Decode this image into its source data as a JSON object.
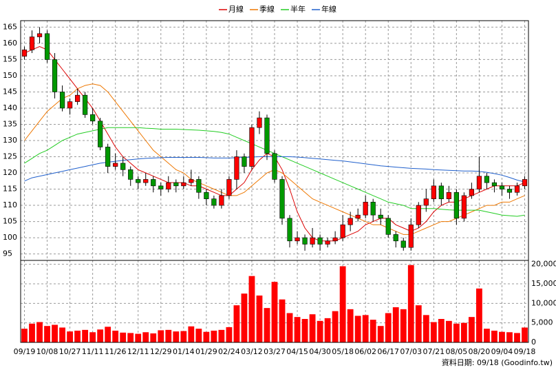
{
  "chart_data": {
    "type": "candlestick",
    "categories": [
      "09/19",
      null,
      null,
      "10/08",
      null,
      null,
      "10/27",
      null,
      null,
      "11/11",
      null,
      null,
      "11/26",
      null,
      null,
      "12/11",
      null,
      null,
      "12/29",
      null,
      null,
      "01/14",
      null,
      null,
      "01/29",
      null,
      null,
      "02/24",
      null,
      null,
      "03/12",
      null,
      null,
      "03/27",
      null,
      null,
      "04/15",
      null,
      null,
      "04/30",
      null,
      null,
      "05/18",
      null,
      null,
      "06/02",
      null,
      null,
      "06/17",
      null,
      null,
      "07/03",
      null,
      null,
      "07/21",
      null,
      null,
      "08/05",
      null,
      null,
      "08/20",
      null,
      null,
      "09/04",
      null,
      null,
      "09/18"
    ],
    "open": [
      156,
      158,
      162,
      163,
      155,
      145,
      140,
      142,
      144,
      138,
      136,
      128,
      122,
      123,
      121,
      118,
      117,
      118,
      116,
      115,
      117,
      116,
      117,
      118,
      114,
      112,
      110,
      113,
      118,
      125,
      122,
      134,
      137,
      126,
      118,
      106,
      99,
      100,
      98,
      100,
      98,
      99,
      100,
      104,
      106,
      107,
      111,
      107,
      106,
      101,
      99,
      97,
      104,
      110,
      112,
      116,
      112,
      114,
      106,
      113,
      115,
      119,
      117,
      116,
      115,
      114,
      116
    ],
    "high": [
      159,
      164,
      165,
      164,
      157,
      147,
      143,
      146,
      145,
      140,
      137,
      129,
      126,
      125,
      122,
      119,
      120,
      119,
      117,
      119,
      118,
      119,
      121,
      119,
      115,
      113,
      115,
      119,
      127,
      126,
      135,
      139,
      138,
      127,
      119,
      107,
      102,
      101,
      103,
      101,
      100,
      102,
      107,
      108,
      109,
      113,
      112,
      109,
      107,
      102,
      100,
      106,
      111,
      115,
      118,
      117,
      116,
      115,
      114,
      117,
      125,
      120,
      118,
      117,
      116,
      117,
      119
    ],
    "low": [
      155,
      157,
      160,
      154,
      143,
      139,
      138,
      141,
      137,
      135,
      127,
      120,
      121,
      119,
      116,
      115,
      116,
      114,
      113,
      114,
      114,
      115,
      116,
      112,
      110,
      109,
      109,
      112,
      115,
      120,
      121,
      132,
      124,
      117,
      104,
      97,
      98,
      96,
      97,
      96,
      97,
      98,
      99,
      102,
      105,
      106,
      105,
      104,
      100,
      97,
      96,
      96,
      103,
      108,
      111,
      110,
      111,
      104,
      105,
      112,
      114,
      115,
      114,
      113,
      112,
      113,
      115
    ],
    "close": [
      158,
      162,
      163,
      155,
      145,
      140,
      142,
      144,
      138,
      136,
      128,
      122,
      123,
      121,
      118,
      117,
      118,
      116,
      115,
      117,
      116,
      117,
      118,
      114,
      112,
      110,
      113,
      118,
      125,
      122,
      134,
      137,
      126,
      118,
      106,
      99,
      100,
      98,
      100,
      98,
      99,
      100,
      104,
      106,
      107,
      111,
      107,
      106,
      101,
      99,
      97,
      104,
      110,
      112,
      116,
      112,
      114,
      106,
      113,
      115,
      119,
      117,
      116,
      115,
      114,
      116,
      118
    ],
    "volume": [
      3500,
      4800,
      5200,
      4200,
      4500,
      3800,
      2800,
      3000,
      3200,
      2600,
      3300,
      4000,
      3000,
      2500,
      2400,
      2200,
      2600,
      2300,
      3100,
      3200,
      2800,
      2900,
      4100,
      3500,
      2700,
      3000,
      3200,
      3900,
      9500,
      12500,
      17000,
      12000,
      8800,
      15500,
      11000,
      7500,
      6500,
      6000,
      7200,
      5500,
      6200,
      8000,
      19500,
      8500,
      6800,
      7000,
      5800,
      4200,
      7500,
      9000,
      8500,
      19800,
      9500,
      7000,
      5200,
      6000,
      5500,
      4800,
      5000,
      6500,
      13800,
      3500,
      3000,
      2700,
      2600,
      2400,
      3800
    ],
    "up_color": "#ff0000",
    "down_color": "#009900",
    "volume_color": "#ff0000",
    "series": [
      {
        "name": "月線",
        "color": "#dd0000",
        "values": [
          157,
          158,
          159,
          158,
          155,
          152,
          149,
          146,
          143,
          140,
          136,
          132,
          128,
          125,
          123,
          121,
          120,
          119,
          118,
          117,
          117,
          117,
          116,
          116,
          115,
          114,
          113,
          113,
          115,
          117,
          121,
          124,
          126,
          125,
          121,
          115,
          108,
          103,
          100,
          99,
          99,
          99,
          100,
          101,
          102,
          104,
          105,
          106,
          106,
          104,
          103,
          102,
          103,
          105,
          108,
          110,
          111,
          111,
          112,
          113,
          114,
          115,
          116,
          116,
          116,
          116,
          117
        ]
      },
      {
        "name": "季線",
        "color": "#ee7700",
        "values": [
          130,
          133,
          136,
          139,
          141,
          143,
          144,
          146,
          147,
          147.5,
          147,
          145,
          142,
          139,
          136,
          133,
          130,
          127,
          125,
          123,
          121,
          120,
          118,
          117,
          116,
          115,
          114,
          113,
          113,
          114,
          116,
          118,
          120,
          121,
          120,
          118,
          116,
          114,
          112,
          111,
          110,
          109,
          108,
          107,
          106,
          105,
          104,
          104,
          103,
          102,
          101,
          101,
          102,
          103,
          104,
          105,
          105,
          106,
          107,
          108,
          109,
          110,
          110,
          111,
          111,
          112,
          113
        ]
      },
      {
        "name": "半年",
        "color": "#22cc22",
        "values": [
          123,
          124.5,
          126,
          127,
          128.5,
          130,
          131,
          132,
          132.5,
          133,
          133.5,
          134,
          134,
          134,
          134,
          134,
          133.8,
          133.7,
          133.5,
          133.5,
          133.5,
          133.4,
          133.3,
          133.2,
          133,
          132.8,
          132.5,
          132,
          131,
          130,
          129,
          128,
          127,
          126,
          125,
          124,
          123,
          122,
          121,
          120,
          119,
          118,
          117,
          116,
          115,
          114,
          113,
          112,
          111,
          110.5,
          110,
          109,
          109,
          109,
          109,
          108.8,
          108.6,
          108.5,
          108.5,
          108.5,
          108.5,
          108,
          107.5,
          107,
          106.8,
          106.6,
          107
        ]
      },
      {
        "name": "年線",
        "color": "#1f5fcc",
        "values": [
          117.5,
          118.5,
          119,
          119.5,
          120,
          120.5,
          121,
          121.5,
          122,
          122.5,
          123,
          123.3,
          123.6,
          123.9,
          124.1,
          124.3,
          124.5,
          124.6,
          124.7,
          124.8,
          124.8,
          124.8,
          124.8,
          124.8,
          124.7,
          124.6,
          124.6,
          124.6,
          124.7,
          124.8,
          124.9,
          125,
          125,
          125,
          125,
          125,
          124.9,
          124.7,
          124.5,
          124.3,
          124.1,
          123.9,
          123.7,
          123.4,
          123.1,
          122.8,
          122.5,
          122.2,
          122,
          121.8,
          121.6,
          121.4,
          121.3,
          121.2,
          121,
          120.9,
          120.8,
          120.7,
          120.6,
          120.6,
          120.5,
          120.2,
          119.8,
          119.3,
          118.6,
          117.8,
          117.2
        ]
      }
    ],
    "ylim": [
      93,
      167
    ],
    "yticks": [
      95,
      100,
      105,
      110,
      115,
      120,
      125,
      130,
      135,
      140,
      145,
      150,
      155,
      160,
      165
    ],
    "volume_ylim": [
      0,
      21000
    ],
    "volume_yticks": [
      0,
      {
        "value": 5000,
        "label": "5,000"
      },
      {
        "value": 10000,
        "label": "10,000"
      },
      {
        "value": 15000,
        "label": "15,000"
      },
      {
        "value": 20000,
        "label": "20,000"
      }
    ],
    "grid": true,
    "legend": "top",
    "source": "資料日期: 09/18  (Goodinfo.tw)"
  }
}
